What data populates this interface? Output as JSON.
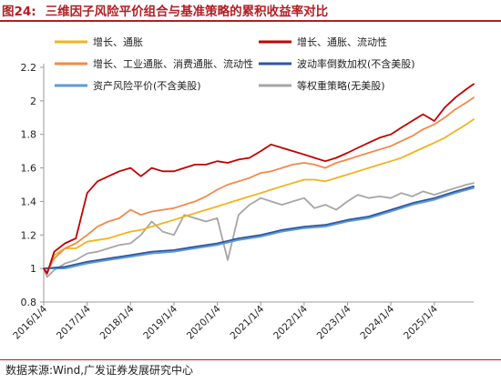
{
  "figure": {
    "label": "图24:",
    "title": "三维因子风险平价组合与基准策略的累积收益率对比"
  },
  "source": "数据来源:Wind,广发证券发展研究中心",
  "chart_data": {
    "type": "line",
    "xlabel": "",
    "ylabel": "",
    "x_ticks": [
      "2016/1/4",
      "2017/1/4",
      "2018/1/4",
      "2019/1/4",
      "2020/1/4",
      "2021/1/4",
      "2022/1/4",
      "2023/1/4",
      "2024/1/4",
      "2025/1/4"
    ],
    "y_ticks": [
      "0.8",
      "1",
      "1.2",
      "1.4",
      "1.6",
      "1.8",
      "2",
      "2.2"
    ],
    "ylim": [
      0.8,
      2.2
    ],
    "xlim": [
      "2016/1/4",
      "2025/12/1"
    ],
    "grid": false,
    "legend_position": "top",
    "series": [
      {
        "name": "增长、通胀",
        "color": "#f2b31e",
        "x": [
          "2016/1/4",
          "2016/2/1",
          "2016/4/1",
          "2016/7/1",
          "2016/10/1",
          "2017/1/4",
          "2017/4/1",
          "2017/7/1",
          "2017/10/1",
          "2018/1/4",
          "2018/4/1",
          "2018/7/1",
          "2018/10/1",
          "2019/1/4",
          "2019/4/1",
          "2019/7/1",
          "2019/10/1",
          "2020/1/4",
          "2020/4/1",
          "2020/7/1",
          "2020/10/1",
          "2021/1/4",
          "2021/4/1",
          "2021/7/1",
          "2021/10/1",
          "2022/1/4",
          "2022/4/1",
          "2022/7/1",
          "2022/10/1",
          "2023/1/4",
          "2023/4/1",
          "2023/7/1",
          "2023/10/1",
          "2024/1/4",
          "2024/4/1",
          "2024/7/1",
          "2024/10/1",
          "2025/1/4",
          "2025/4/1",
          "2025/7/1",
          "2025/10/1",
          "2025/12/1"
        ],
        "values": [
          1.0,
          0.97,
          1.08,
          1.12,
          1.12,
          1.16,
          1.17,
          1.18,
          1.2,
          1.22,
          1.23,
          1.25,
          1.27,
          1.29,
          1.31,
          1.33,
          1.35,
          1.37,
          1.39,
          1.41,
          1.43,
          1.45,
          1.47,
          1.49,
          1.51,
          1.53,
          1.53,
          1.52,
          1.54,
          1.56,
          1.58,
          1.6,
          1.62,
          1.64,
          1.66,
          1.69,
          1.72,
          1.75,
          1.78,
          1.82,
          1.86,
          1.89
        ]
      },
      {
        "name": "增长、通胀、流动性",
        "color": "#c00000",
        "x": [
          "2016/1/4",
          "2016/2/1",
          "2016/4/1",
          "2016/7/1",
          "2016/10/1",
          "2017/1/4",
          "2017/4/1",
          "2017/7/1",
          "2017/10/1",
          "2018/1/4",
          "2018/4/1",
          "2018/7/1",
          "2018/10/1",
          "2019/1/4",
          "2019/4/1",
          "2019/7/1",
          "2019/10/1",
          "2020/1/4",
          "2020/4/1",
          "2020/7/1",
          "2020/10/1",
          "2021/1/4",
          "2021/4/1",
          "2021/7/1",
          "2021/10/1",
          "2022/1/4",
          "2022/4/1",
          "2022/7/1",
          "2022/10/1",
          "2023/1/4",
          "2023/4/1",
          "2023/7/1",
          "2023/10/1",
          "2024/1/4",
          "2024/4/1",
          "2024/7/1",
          "2024/10/1",
          "2025/1/4",
          "2025/4/1",
          "2025/7/1",
          "2025/10/1",
          "2025/12/1"
        ],
        "values": [
          1.0,
          0.97,
          1.1,
          1.15,
          1.18,
          1.45,
          1.52,
          1.55,
          1.58,
          1.6,
          1.55,
          1.6,
          1.58,
          1.58,
          1.6,
          1.62,
          1.62,
          1.64,
          1.63,
          1.65,
          1.66,
          1.7,
          1.74,
          1.72,
          1.7,
          1.68,
          1.66,
          1.64,
          1.66,
          1.69,
          1.72,
          1.75,
          1.78,
          1.8,
          1.84,
          1.88,
          1.92,
          1.88,
          1.96,
          2.02,
          2.07,
          2.1
        ]
      },
      {
        "name": "增长、工业通胀、消费通胀、流动性",
        "color": "#f4894a",
        "x": [
          "2016/1/4",
          "2016/2/1",
          "2016/4/1",
          "2016/7/1",
          "2016/10/1",
          "2017/1/4",
          "2017/4/1",
          "2017/7/1",
          "2017/10/1",
          "2018/1/4",
          "2018/4/1",
          "2018/7/1",
          "2018/10/1",
          "2019/1/4",
          "2019/4/1",
          "2019/7/1",
          "2019/10/1",
          "2020/1/4",
          "2020/4/1",
          "2020/7/1",
          "2020/10/1",
          "2021/1/4",
          "2021/4/1",
          "2021/7/1",
          "2021/10/1",
          "2022/1/4",
          "2022/4/1",
          "2022/7/1",
          "2022/10/1",
          "2023/1/4",
          "2023/4/1",
          "2023/7/1",
          "2023/10/1",
          "2024/1/4",
          "2024/4/1",
          "2024/7/1",
          "2024/10/1",
          "2025/1/4",
          "2025/4/1",
          "2025/7/1",
          "2025/10/1",
          "2025/12/1"
        ],
        "values": [
          1.0,
          0.98,
          1.06,
          1.12,
          1.15,
          1.2,
          1.25,
          1.28,
          1.3,
          1.35,
          1.32,
          1.34,
          1.35,
          1.36,
          1.38,
          1.4,
          1.43,
          1.47,
          1.5,
          1.52,
          1.54,
          1.57,
          1.58,
          1.6,
          1.62,
          1.63,
          1.62,
          1.6,
          1.63,
          1.65,
          1.67,
          1.69,
          1.71,
          1.73,
          1.76,
          1.79,
          1.83,
          1.86,
          1.9,
          1.95,
          1.99,
          2.02
        ]
      },
      {
        "name": "波动率倒数加权(不含美股)",
        "color": "#2f55a4",
        "x": [
          "2016/1/4",
          "2016/7/1",
          "2017/1/4",
          "2017/7/1",
          "2018/1/4",
          "2018/7/1",
          "2019/1/4",
          "2019/7/1",
          "2020/1/4",
          "2020/7/1",
          "2021/1/4",
          "2021/7/1",
          "2022/1/4",
          "2022/7/1",
          "2023/1/4",
          "2023/7/1",
          "2024/1/4",
          "2024/7/1",
          "2025/1/4",
          "2025/7/1",
          "2025/12/1"
        ],
        "values": [
          1.0,
          1.01,
          1.04,
          1.06,
          1.08,
          1.1,
          1.11,
          1.13,
          1.15,
          1.18,
          1.2,
          1.23,
          1.25,
          1.26,
          1.29,
          1.31,
          1.35,
          1.39,
          1.42,
          1.46,
          1.49
        ]
      },
      {
        "name": "资产风险平价(不含美股)",
        "color": "#5b9bd5",
        "x": [
          "2016/1/4",
          "2016/7/1",
          "2017/1/4",
          "2017/7/1",
          "2018/1/4",
          "2018/7/1",
          "2019/1/4",
          "2019/7/1",
          "2020/1/4",
          "2020/7/1",
          "2021/1/4",
          "2021/7/1",
          "2022/1/4",
          "2022/7/1",
          "2023/1/4",
          "2023/7/1",
          "2024/1/4",
          "2024/7/1",
          "2025/1/4",
          "2025/7/1",
          "2025/12/1"
        ],
        "values": [
          1.0,
          1.0,
          1.03,
          1.05,
          1.07,
          1.09,
          1.1,
          1.12,
          1.14,
          1.17,
          1.19,
          1.22,
          1.24,
          1.25,
          1.28,
          1.3,
          1.34,
          1.38,
          1.41,
          1.45,
          1.48
        ]
      },
      {
        "name": "等权重策略(无美股)",
        "color": "#a6a6a6",
        "x": [
          "2016/1/4",
          "2016/2/1",
          "2016/4/1",
          "2016/7/1",
          "2016/10/1",
          "2017/1/4",
          "2017/4/1",
          "2017/7/1",
          "2017/10/1",
          "2018/1/4",
          "2018/4/1",
          "2018/7/1",
          "2018/10/1",
          "2019/1/4",
          "2019/4/1",
          "2019/7/1",
          "2019/10/1",
          "2020/1/4",
          "2020/4/1",
          "2020/7/1",
          "2020/10/1",
          "2021/1/4",
          "2021/4/1",
          "2021/7/1",
          "2021/10/1",
          "2022/1/4",
          "2022/4/1",
          "2022/7/1",
          "2022/10/1",
          "2023/1/4",
          "2023/4/1",
          "2023/7/1",
          "2023/10/1",
          "2024/1/4",
          "2024/4/1",
          "2024/7/1",
          "2024/10/1",
          "2025/1/4",
          "2025/4/1",
          "2025/7/1",
          "2025/10/1",
          "2025/12/1"
        ],
        "values": [
          1.0,
          0.95,
          0.99,
          1.03,
          1.05,
          1.09,
          1.1,
          1.12,
          1.14,
          1.15,
          1.2,
          1.28,
          1.22,
          1.2,
          1.32,
          1.3,
          1.28,
          1.3,
          1.05,
          1.32,
          1.38,
          1.42,
          1.4,
          1.38,
          1.4,
          1.42,
          1.36,
          1.38,
          1.35,
          1.4,
          1.44,
          1.42,
          1.43,
          1.42,
          1.45,
          1.43,
          1.46,
          1.44,
          1.46,
          1.48,
          1.5,
          1.51
        ]
      }
    ]
  }
}
